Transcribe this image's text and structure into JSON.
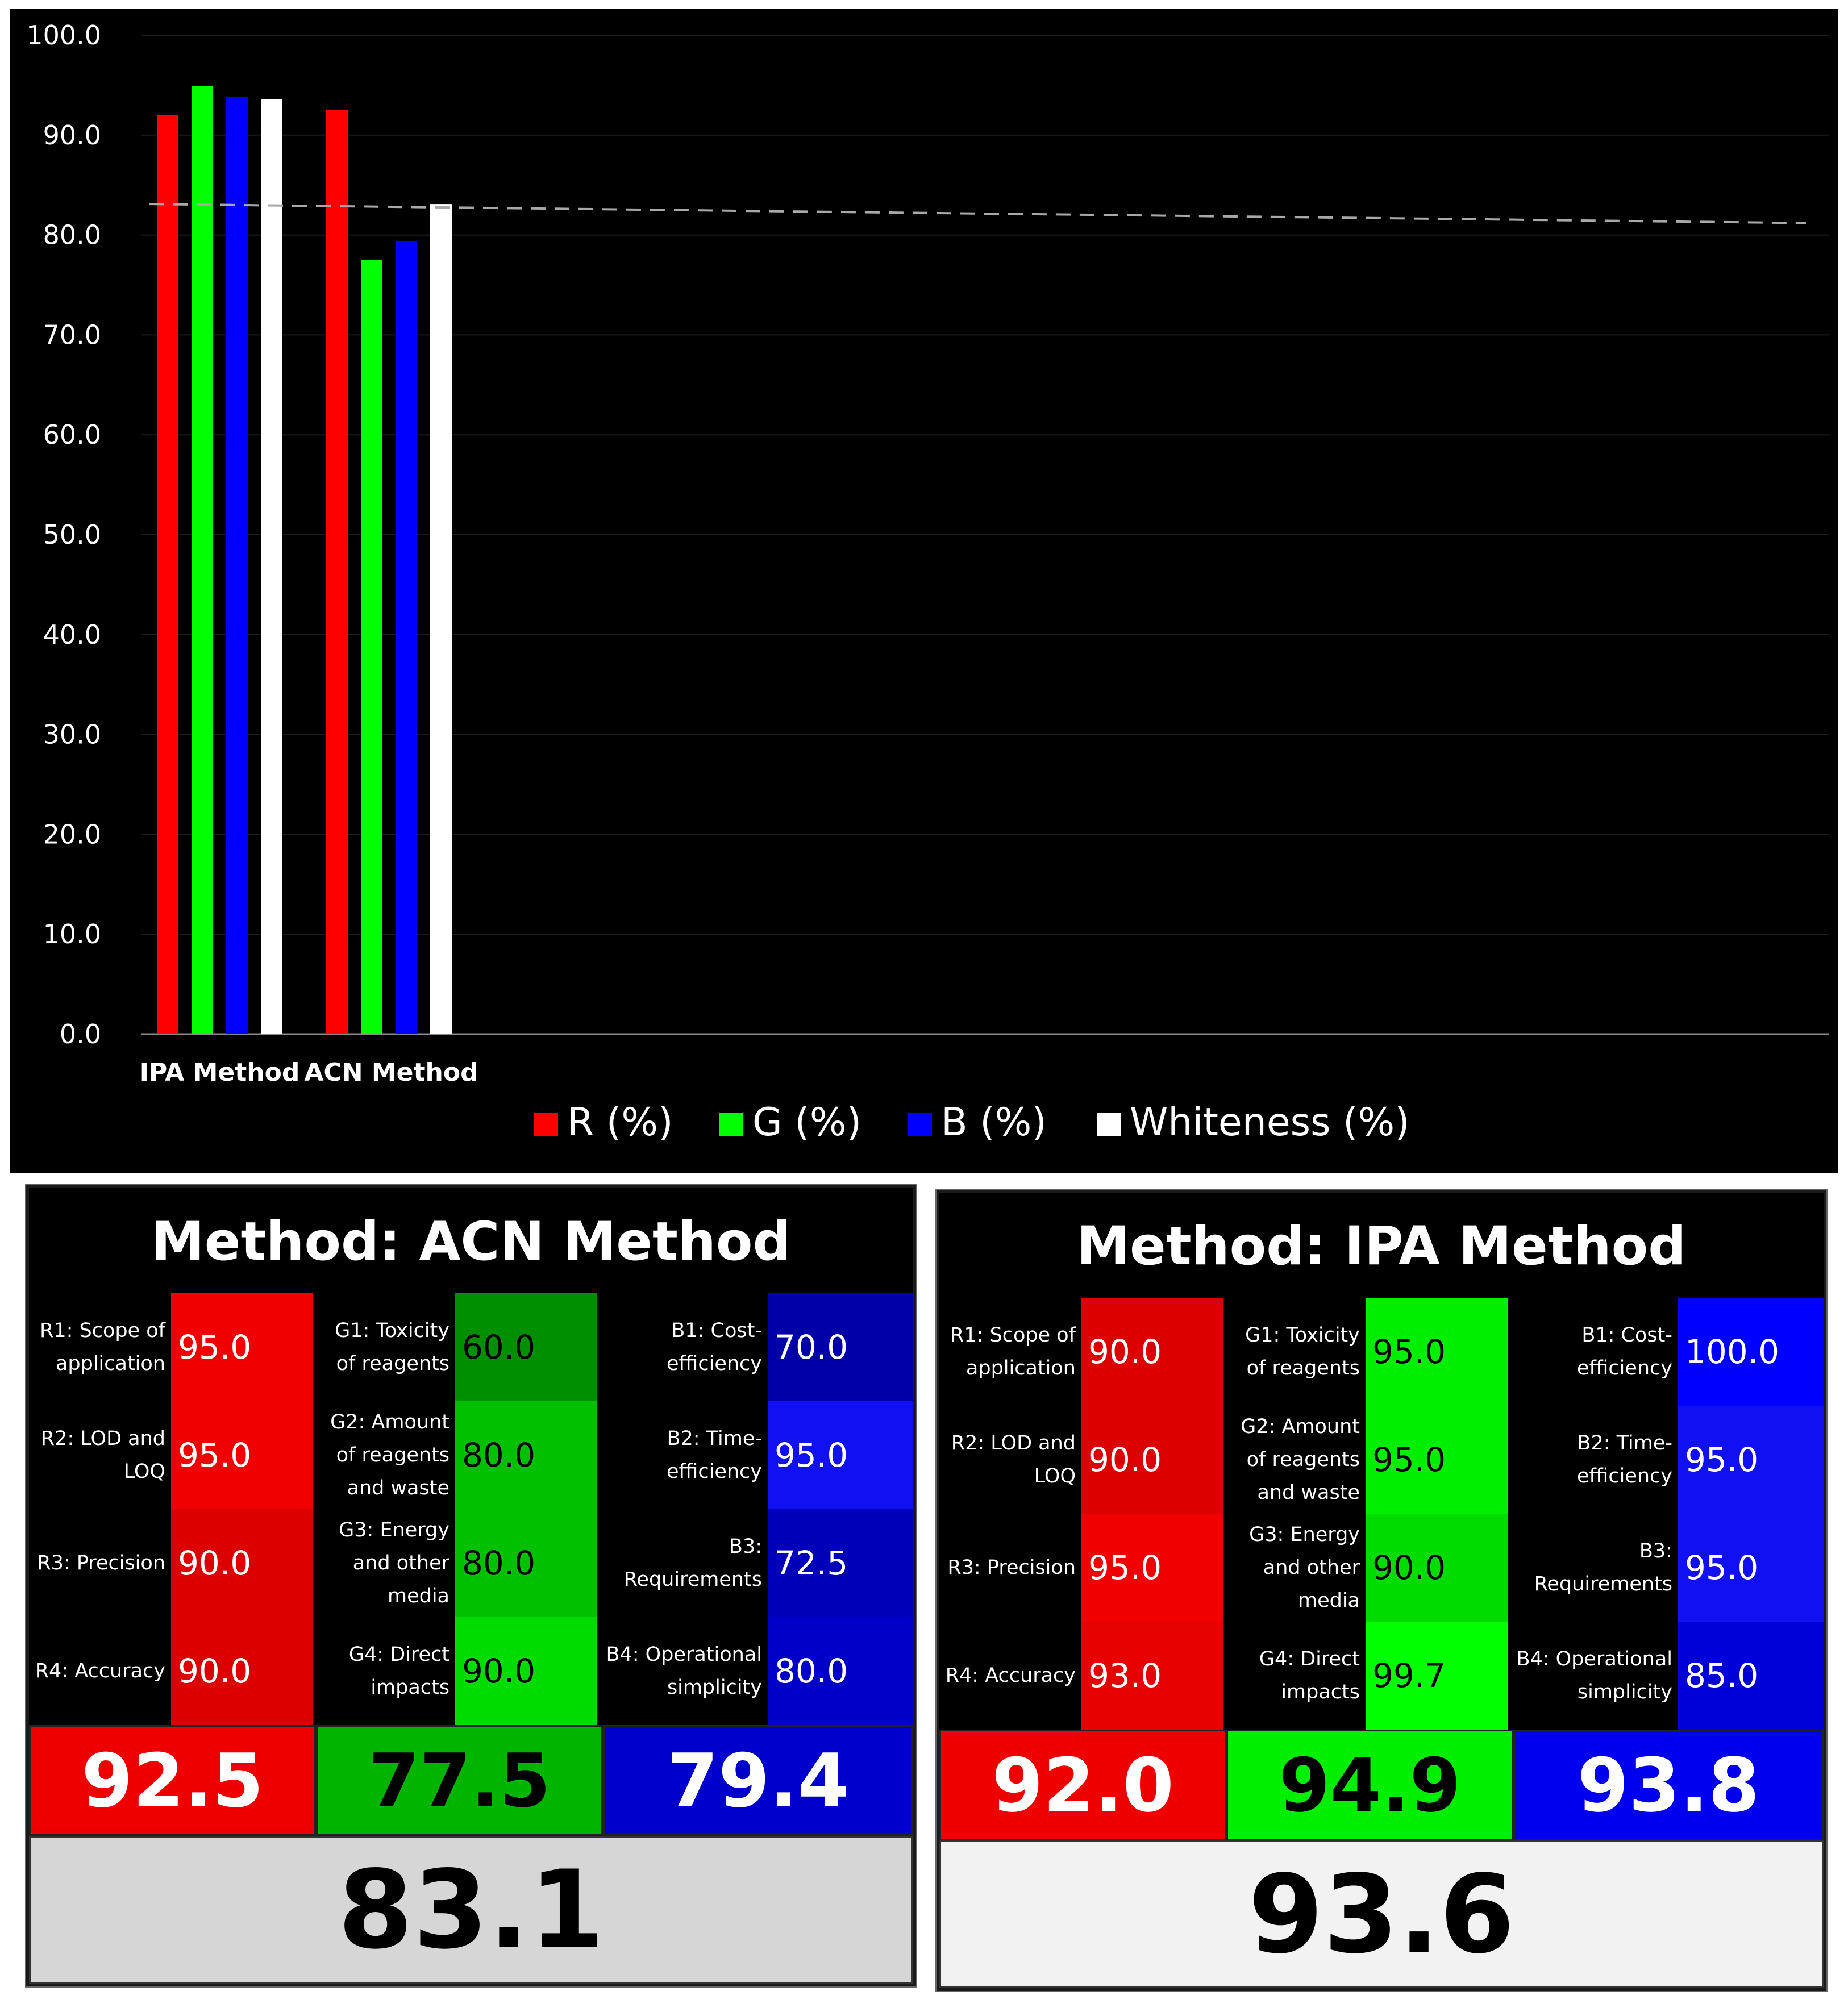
{
  "chart_data": {
    "type": "bar",
    "categories": [
      "IPA Method",
      "ACN Method"
    ],
    "series": [
      {
        "name": "R (%)",
        "color": "#ff0000",
        "values": [
          92.0,
          92.5
        ]
      },
      {
        "name": "G (%)",
        "color": "#00ff00",
        "values": [
          94.9,
          77.5
        ]
      },
      {
        "name": "B (%)",
        "color": "#0000ff",
        "values": [
          93.8,
          79.4
        ]
      },
      {
        "name": "Whiteness (%)",
        "color": "#ffffff",
        "values": [
          93.6,
          83.1
        ]
      }
    ],
    "yticks": [
      "100.0",
      "90.0",
      "80.0",
      "70.0",
      "60.0",
      "50.0",
      "40.0",
      "30.0",
      "20.0",
      "10.0",
      "0.0"
    ],
    "ylim": [
      0,
      100
    ],
    "reference_line": {
      "style": "dashed",
      "from": 83.1,
      "to": 81.2
    },
    "grid": true,
    "legend_position": "bottom",
    "background": "#000000"
  },
  "panels": [
    {
      "title": "Method: ACN Method",
      "rows": [
        {
          "r_label": "R1: Scope of\napplication",
          "r_value": "95.0",
          "g_label": "G1: Toxicity\nof reagents",
          "g_value": "60.0",
          "b_label": "B1: Cost-\nefficiency",
          "b_value": "70.0",
          "r_color": "#f00000",
          "g_color": "#008f00",
          "b_color": "#0000a8"
        },
        {
          "r_label": "R2: LOD and\nLOQ",
          "r_value": "95.0",
          "g_label": "G2: Amount\nof reagents\nand waste",
          "g_value": "80.0",
          "b_label": "B2: Time-\nefficiency",
          "b_value": "95.0",
          "r_color": "#f00000",
          "g_color": "#00c000",
          "b_color": "#1010f0"
        },
        {
          "r_label": "R3: Precision",
          "r_value": "90.0",
          "g_label": "G3: Energy\nand other\nmedia",
          "g_value": "80.0",
          "b_label": "B3:\nRequirements",
          "b_value": "72.5",
          "r_color": "#dd0000",
          "g_color": "#00c000",
          "b_color": "#0000b8"
        },
        {
          "r_label": "R4: Accuracy",
          "r_value": "90.0",
          "g_label": "G4: Direct\nimpacts",
          "g_value": "90.0",
          "b_label": "B4: Operational\nsimplicity",
          "b_value": "80.0",
          "r_color": "#dd0000",
          "g_color": "#00dc00",
          "b_color": "#0000c8"
        }
      ],
      "scores": {
        "r": "92.5",
        "g": "77.5",
        "b": "79.4"
      },
      "score_colors": {
        "r": "#ee0000",
        "g": "#00b400",
        "b": "#0000cc"
      },
      "whiteness": "83.1",
      "whiteness_bg": "#d6d6d6"
    },
    {
      "title": "Method: IPA Method",
      "rows": [
        {
          "r_label": "R1: Scope of\napplication",
          "r_value": "90.0",
          "g_label": "G1: Toxicity\nof reagents",
          "g_value": "95.0",
          "b_label": "B1: Cost-\nefficiency",
          "b_value": "100.0",
          "r_color": "#dd0000",
          "g_color": "#00ee00",
          "b_color": "#0000ff"
        },
        {
          "r_label": "R2: LOD and\nLOQ",
          "r_value": "90.0",
          "g_label": "G2: Amount\nof reagents\nand waste",
          "g_value": "95.0",
          "b_label": "B2: Time-\nefficiency",
          "b_value": "95.0",
          "r_color": "#dd0000",
          "g_color": "#00ee00",
          "b_color": "#1010f0"
        },
        {
          "r_label": "R3: Precision",
          "r_value": "95.0",
          "g_label": "G3: Energy\nand other\nmedia",
          "g_value": "90.0",
          "b_label": "B3:\nRequirements",
          "b_value": "95.0",
          "r_color": "#f00000",
          "g_color": "#00dc00",
          "b_color": "#1010f0"
        },
        {
          "r_label": "R4: Accuracy",
          "r_value": "93.0",
          "g_label": "G4: Direct\nimpacts",
          "g_value": "99.7",
          "b_label": "B4: Operational\nsimplicity",
          "b_value": "85.0",
          "r_color": "#e60000",
          "g_color": "#00ff00",
          "b_color": "#0000d8"
        }
      ],
      "scores": {
        "r": "92.0",
        "g": "94.9",
        "b": "93.8"
      },
      "score_colors": {
        "r": "#ee0000",
        "g": "#00ee00",
        "b": "#0000ee"
      },
      "whiteness": "93.6",
      "whiteness_bg": "#f2f2f2"
    }
  ]
}
